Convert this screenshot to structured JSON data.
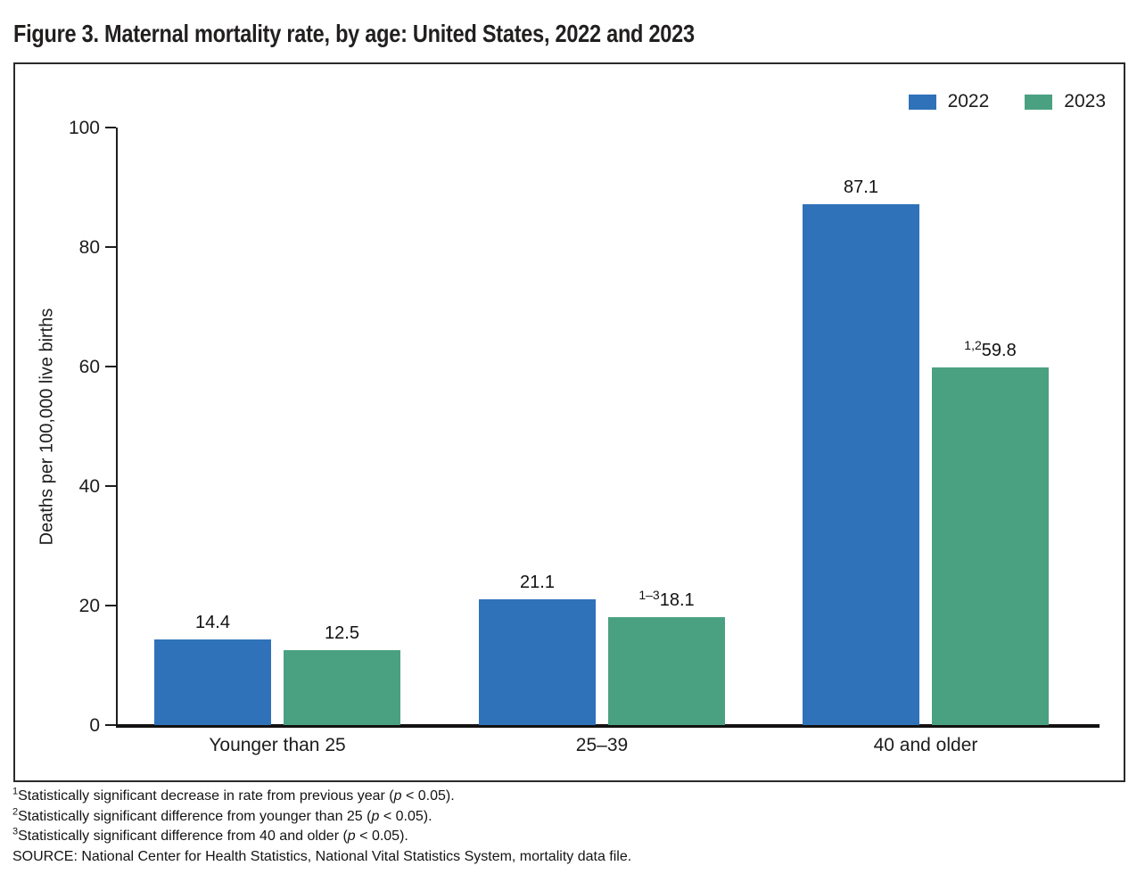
{
  "figure": {
    "title": "Figure 3. Maternal mortality rate, by age: United States, 2022 and 2023"
  },
  "chart_data": {
    "type": "bar",
    "title": "Figure 3. Maternal mortality rate, by age: United States, 2022 and 2023",
    "categories": [
      "Younger than 25",
      "25–39",
      "40 and older"
    ],
    "series": [
      {
        "name": "2022",
        "color": "#2F72B9",
        "values": [
          14.4,
          21.1,
          87.1
        ],
        "value_labels": [
          {
            "sup": "",
            "text": "14.4"
          },
          {
            "sup": "",
            "text": "21.1"
          },
          {
            "sup": "",
            "text": "87.1"
          }
        ]
      },
      {
        "name": "2023",
        "color": "#4AA181",
        "values": [
          12.5,
          18.1,
          59.8
        ],
        "value_labels": [
          {
            "sup": "",
            "text": "12.5"
          },
          {
            "sup": "1–3",
            "text": "18.1"
          },
          {
            "sup": "1,2",
            "text": "59.8"
          }
        ]
      }
    ],
    "xlabel": "",
    "ylabel": "Deaths per 100,000 live births",
    "ylim": [
      0,
      100
    ],
    "yticks": [
      0,
      20,
      40,
      60,
      80,
      100
    ],
    "grid": false,
    "legend_position": "top-right"
  },
  "legend": {
    "items": [
      {
        "label": "2022",
        "color": "#2F72B9"
      },
      {
        "label": "2023",
        "color": "#4AA181"
      }
    ]
  },
  "footnotes": [
    {
      "sup": "1",
      "pre": "Statistically significant decrease in rate from previous year (",
      "p": "p",
      "post": " < 0.05)."
    },
    {
      "sup": "2",
      "pre": "Statistically significant difference from younger than 25 (",
      "p": "p",
      "post": " < 0.05)."
    },
    {
      "sup": "3",
      "pre": "Statistically significant difference from 40 and older (",
      "p": "p",
      "post": " < 0.05)."
    }
  ],
  "source": "SOURCE: National Center for Health Statistics, National Vital Statistics System, mortality data file."
}
